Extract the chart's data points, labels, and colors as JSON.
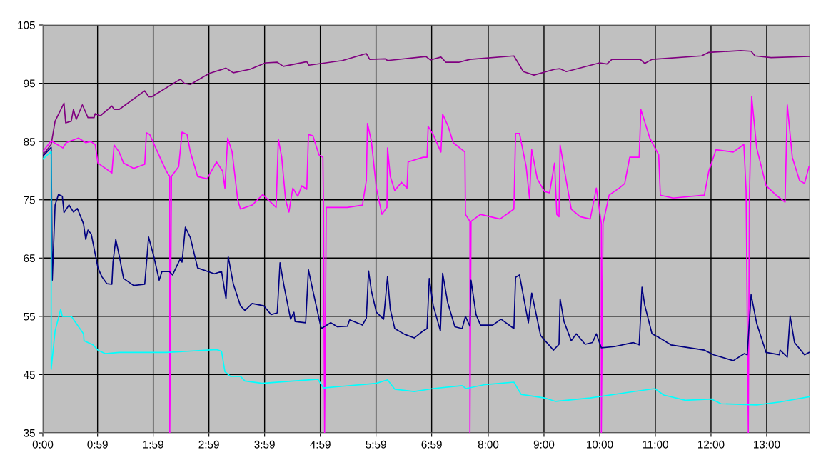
{
  "chart_data": {
    "type": "line",
    "grid": true,
    "marker": "none",
    "line_style": "solid",
    "xlim": [
      0,
      13.77
    ],
    "ylim": [
      35,
      105
    ],
    "yticks": [
      35,
      45,
      55,
      65,
      75,
      85,
      95,
      105
    ],
    "xticks": [
      {
        "value": 0,
        "label": "0:00"
      },
      {
        "value": 0.983,
        "label": "0:59"
      },
      {
        "value": 1.983,
        "label": "1:59"
      },
      {
        "value": 2.983,
        "label": "2:59"
      },
      {
        "value": 3.983,
        "label": "3:59"
      },
      {
        "value": 4.983,
        "label": "4:59"
      },
      {
        "value": 5.983,
        "label": "5:59"
      },
      {
        "value": 6.983,
        "label": "6:59"
      },
      {
        "value": 8,
        "label": "8:00"
      },
      {
        "value": 9,
        "label": "9:00"
      },
      {
        "value": 10,
        "label": "10:00"
      },
      {
        "value": 11,
        "label": "11:00"
      },
      {
        "value": 12,
        "label": "12:00"
      },
      {
        "value": 13,
        "label": "13:00"
      }
    ],
    "series": [
      {
        "color": "#800080",
        "x": [
          0,
          0.15,
          0.22,
          0.38,
          0.41,
          0.51,
          0.55,
          0.6,
          0.71,
          0.81,
          0.92,
          0.94,
          1.03,
          1.24,
          1.28,
          1.37,
          1.83,
          1.9,
          1.96,
          2.18,
          2.47,
          2.54,
          2.65,
          2.99,
          3.29,
          3.42,
          3.72,
          4.0,
          4.21,
          4.32,
          4.74,
          4.78,
          5.38,
          5.81,
          5.87,
          6.15,
          6.19,
          6.88,
          6.96,
          7.15,
          7.24,
          7.47,
          7.67,
          8.46,
          8.63,
          8.82,
          9.19,
          9.29,
          9.4,
          10.0,
          10.13,
          10.22,
          10.73,
          10.81,
          10.94,
          11.83,
          11.96,
          12.53,
          12.72,
          12.79,
          13.08,
          13.76
        ],
        "values": [
          82.7,
          84.5,
          88.5,
          91.6,
          88.2,
          88.5,
          90.5,
          88.8,
          91.3,
          89.1,
          89.1,
          89.8,
          89.4,
          91.1,
          90.5,
          90.5,
          93.7,
          92.7,
          92.7,
          94.0,
          95.7,
          95.0,
          94.8,
          96.7,
          97.6,
          96.8,
          97.4,
          98.5,
          98.6,
          97.9,
          98.7,
          98.1,
          98.9,
          100.1,
          99.1,
          99.2,
          98.9,
          99.6,
          99.0,
          99.5,
          98.6,
          98.6,
          99.1,
          99.7,
          97.0,
          96.4,
          97.4,
          97.5,
          97.0,
          98.5,
          98.3,
          99.1,
          99.1,
          98.4,
          99.1,
          99.7,
          100.3,
          100.6,
          100.5,
          99.7,
          99.4,
          99.6
        ]
      },
      {
        "color": "#ff00ff",
        "x": [
          0,
          0.15,
          0.36,
          0.42,
          0.64,
          0.77,
          0.86,
          0.94,
          0.99,
          1.24,
          1.28,
          1.37,
          1.45,
          1.63,
          1.83,
          1.86,
          1.92,
          2.14,
          2.22,
          2.28,
          2.28,
          2.31,
          2.44,
          2.5,
          2.59,
          2.65,
          2.78,
          2.95,
          3.12,
          3.23,
          3.27,
          3.32,
          3.4,
          3.5,
          3.55,
          3.76,
          3.95,
          4.19,
          4.23,
          4.29,
          4.36,
          4.42,
          4.49,
          4.58,
          4.65,
          4.74,
          4.77,
          4.85,
          4.96,
          5.03,
          5.04,
          5.06,
          5.09,
          5.47,
          5.74,
          5.81,
          5.83,
          5.9,
          5.99,
          6.09,
          6.18,
          6.19,
          6.24,
          6.32,
          6.44,
          6.54,
          6.56,
          6.83,
          6.9,
          6.92,
          7.01,
          7.15,
          7.18,
          7.28,
          7.37,
          7.53,
          7.58,
          7.59,
          7.67,
          7.67,
          7.69,
          7.86,
          8.21,
          8.46,
          8.49,
          8.56,
          8.68,
          8.74,
          8.78,
          8.88,
          9.01,
          9.1,
          9.19,
          9.23,
          9.27,
          9.29,
          9.4,
          9.49,
          9.65,
          9.83,
          9.94,
          10.03,
          10.03,
          10.06,
          10.17,
          10.35,
          10.45,
          10.54,
          10.71,
          10.74,
          10.9,
          11.06,
          11.09,
          11.32,
          11.88,
          11.96,
          12.09,
          12.4,
          12.59,
          12.63,
          12.67,
          12.69,
          12.73,
          12.82,
          12.99,
          13.17,
          13.33,
          13.37,
          13.46,
          13.59,
          13.68,
          13.76
        ],
        "values": [
          83.3,
          85.1,
          83.9,
          84.8,
          85.6,
          84.8,
          85.0,
          84.5,
          81.3,
          79.6,
          84.4,
          83.2,
          81.3,
          80.4,
          81.1,
          86.5,
          86.2,
          81.5,
          79.9,
          79.0,
          35,
          79.0,
          80.7,
          86.6,
          86.2,
          83.2,
          79.0,
          78.6,
          81.5,
          79.9,
          77.0,
          85.6,
          83.2,
          75.0,
          73.4,
          74.1,
          75.9,
          73.7,
          85.4,
          82.3,
          75.0,
          72.9,
          77.0,
          75.6,
          77.4,
          76.8,
          86.2,
          86.0,
          82.7,
          82.3,
          74.1,
          35,
          73.7,
          73.7,
          74.1,
          78.3,
          88.1,
          85.1,
          77.0,
          72.5,
          73.7,
          83.9,
          79.0,
          76.6,
          78.0,
          77.0,
          81.5,
          82.3,
          82.3,
          87.6,
          86.2,
          83.2,
          89.7,
          87.6,
          84.8,
          83.6,
          83.2,
          72.5,
          71.3,
          35,
          71.3,
          72.5,
          71.7,
          73.4,
          86.4,
          86.4,
          80.7,
          75.3,
          83.6,
          78.6,
          76.4,
          76.2,
          81.3,
          72.5,
          72.1,
          84.4,
          78.3,
          73.4,
          72.1,
          71.7,
          77.0,
          70.9,
          35,
          70.9,
          75.8,
          77.0,
          77.8,
          82.3,
          82.3,
          90.5,
          85.6,
          82.7,
          75.8,
          75.3,
          75.8,
          79.9,
          83.6,
          83.2,
          84.5,
          76.6,
          35,
          75.8,
          92.7,
          83.9,
          77.4,
          75.8,
          74.6,
          91.3,
          82.3,
          78.3,
          77.8,
          80.7
        ]
      },
      {
        "color": "#000080",
        "x": [
          0,
          0.15,
          0.17,
          0.22,
          0.28,
          0.35,
          0.38,
          0.47,
          0.55,
          0.62,
          0.73,
          0.77,
          0.81,
          0.87,
          0.99,
          1.06,
          1.15,
          1.24,
          1.26,
          1.31,
          1.37,
          1.45,
          1.63,
          1.83,
          1.9,
          1.99,
          2.09,
          2.14,
          2.27,
          2.33,
          2.47,
          2.5,
          2.56,
          2.65,
          2.78,
          3.08,
          3.21,
          3.29,
          3.33,
          3.42,
          3.55,
          3.63,
          3.76,
          3.97,
          4.1,
          4.21,
          4.26,
          4.33,
          4.45,
          4.51,
          4.53,
          4.72,
          4.77,
          4.85,
          5.0,
          5.17,
          5.29,
          5.47,
          5.51,
          5.74,
          5.81,
          5.85,
          5.9,
          5.99,
          6.12,
          6.19,
          6.24,
          6.32,
          6.5,
          6.67,
          6.83,
          6.9,
          6.94,
          7.01,
          7.14,
          7.18,
          7.27,
          7.4,
          7.53,
          7.59,
          7.67,
          7.69,
          7.78,
          7.86,
          8.08,
          8.23,
          8.46,
          8.49,
          8.56,
          8.72,
          8.78,
          8.94,
          9.17,
          9.27,
          9.29,
          9.36,
          9.49,
          9.58,
          9.74,
          9.87,
          9.94,
          10.03,
          10.26,
          10.6,
          10.71,
          10.76,
          10.81,
          10.94,
          11.06,
          11.28,
          11.88,
          12.05,
          12.4,
          12.6,
          12.65,
          12.72,
          12.82,
          12.99,
          13.23,
          13.24,
          13.37,
          13.42,
          13.5,
          13.68,
          13.76
        ],
        "values": [
          82.5,
          84.0,
          61.2,
          74.1,
          75.9,
          75.6,
          72.8,
          74.1,
          72.9,
          73.5,
          70.9,
          68.2,
          69.8,
          69.1,
          63.3,
          61.8,
          60.6,
          60.5,
          64.3,
          68.2,
          65.5,
          61.5,
          60.3,
          60.5,
          68.6,
          65.4,
          61.2,
          62.7,
          62.7,
          62.1,
          64.9,
          64.3,
          70.3,
          68.5,
          63.3,
          62.3,
          62.7,
          58.0,
          65.2,
          60.6,
          56.8,
          56.0,
          57.2,
          56.8,
          55.3,
          55.6,
          64.2,
          60.3,
          54.5,
          55.7,
          54.1,
          53.9,
          63.0,
          59.4,
          52.9,
          53.9,
          53.2,
          53.3,
          54.4,
          53.5,
          54.7,
          62.8,
          59.4,
          55.7,
          54.5,
          61.8,
          56.2,
          52.9,
          51.9,
          51.3,
          52.5,
          52.9,
          61.5,
          56.9,
          52.5,
          62.4,
          57.4,
          53.2,
          52.9,
          55.0,
          53.3,
          61.2,
          55.3,
          53.5,
          53.5,
          54.5,
          52.9,
          61.7,
          62.1,
          53.9,
          59.0,
          51.7,
          49.2,
          50.2,
          58.0,
          54.1,
          50.8,
          52.0,
          50.2,
          50.5,
          52.0,
          49.6,
          49.8,
          50.5,
          50.1,
          60.0,
          56.9,
          52.0,
          51.4,
          50.1,
          49.2,
          48.4,
          47.4,
          48.6,
          48.4,
          58.7,
          53.8,
          48.8,
          48.4,
          49.2,
          48.0,
          55.1,
          50.5,
          48.4,
          48.8
        ]
      },
      {
        "color": "#00ffff",
        "x": [
          0,
          0.15,
          0.15,
          0.22,
          0.32,
          0.35,
          0.51,
          0.6,
          0.73,
          0.74,
          0.9,
          0.99,
          1.12,
          1.37,
          2.22,
          3.12,
          3.21,
          3.27,
          3.37,
          3.55,
          3.63,
          3.94,
          4.94,
          5.04,
          5.38,
          5.99,
          6.19,
          6.32,
          6.67,
          7.01,
          7.53,
          7.6,
          7.95,
          8.46,
          8.59,
          9.01,
          9.21,
          9.83,
          10.47,
          10.99,
          11.15,
          11.54,
          12.01,
          12.18,
          12.82,
          13.24,
          13.76
        ],
        "values": [
          82.0,
          83.3,
          45.9,
          52.5,
          56.2,
          55.0,
          55.0,
          53.8,
          52.0,
          50.8,
          50.1,
          49.2,
          48.6,
          48.8,
          48.8,
          49.3,
          49.0,
          45.5,
          44.7,
          44.7,
          43.9,
          43.5,
          44.2,
          42.7,
          43.0,
          43.5,
          44.1,
          42.5,
          42.1,
          42.6,
          43.1,
          42.6,
          43.3,
          43.7,
          41.6,
          41.0,
          40.4,
          41.0,
          41.9,
          42.6,
          41.5,
          40.6,
          40.8,
          40.0,
          39.8,
          40.3,
          41.2
        ]
      }
    ]
  }
}
